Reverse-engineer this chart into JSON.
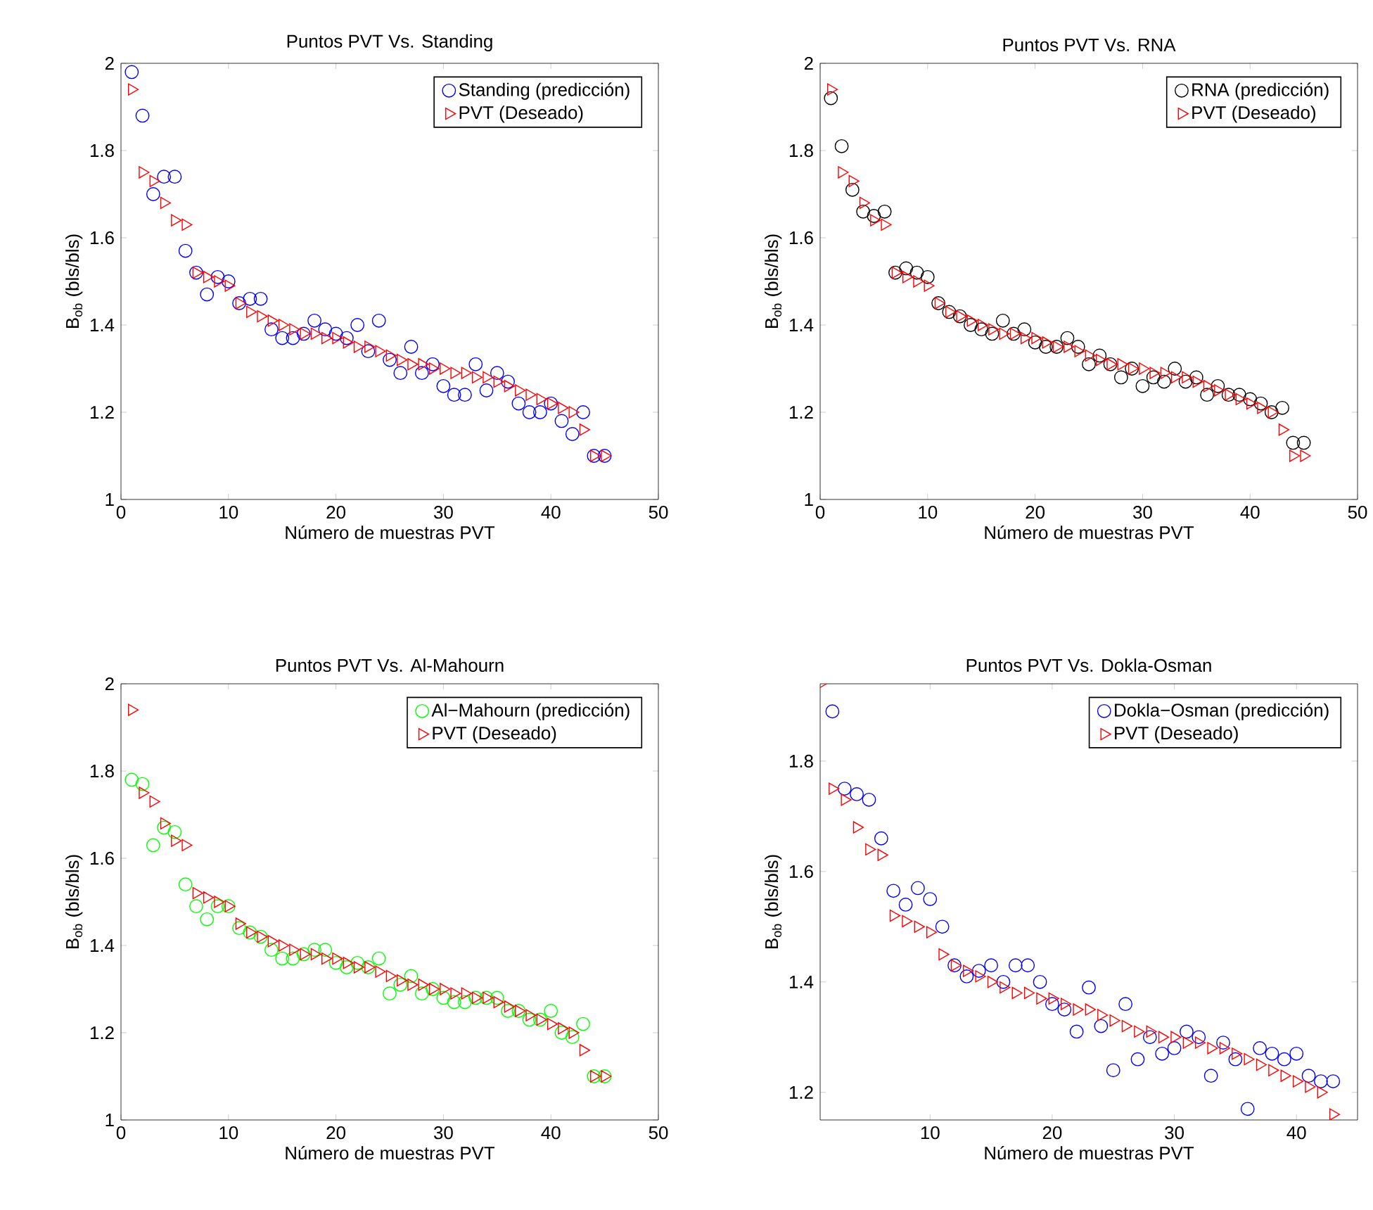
{
  "chart_data": [
    {
      "type": "scatter",
      "title": "Puntos PVT Vs. Standing",
      "xlabel": "Número de muestras PVT",
      "ylabel": "B$_{ob}$ (bls/bls)",
      "x": [
        1,
        2,
        3,
        4,
        5,
        6,
        7,
        8,
        9,
        10,
        11,
        12,
        13,
        14,
        15,
        16,
        17,
        18,
        19,
        20,
        21,
        22,
        23,
        24,
        25,
        26,
        27,
        28,
        29,
        30,
        31,
        32,
        33,
        34,
        35,
        36,
        37,
        38,
        39,
        40,
        41,
        42,
        43,
        44,
        45
      ],
      "legend": "top right",
      "xlim": [
        0,
        50
      ],
      "ylim": [
        1,
        2
      ],
      "xticks": [
        0,
        10,
        20,
        30,
        40,
        50
      ],
      "yticks": [
        1,
        1.2,
        1.4,
        1.6,
        1.8,
        2
      ],
      "series": [
        {
          "name": "Standing (predicción)",
          "color": "#0000ff",
          "marker": "circle",
          "values": [
            1.98,
            1.88,
            1.7,
            1.74,
            1.74,
            1.57,
            1.52,
            1.47,
            1.51,
            1.5,
            1.45,
            1.46,
            1.46,
            1.39,
            1.37,
            1.37,
            1.38,
            1.41,
            1.39,
            1.38,
            1.37,
            1.4,
            1.34,
            1.41,
            1.32,
            1.29,
            1.35,
            1.29,
            1.31,
            1.26,
            1.24,
            1.24,
            1.31,
            1.25,
            1.29,
            1.27,
            1.22,
            1.2,
            1.2,
            1.22,
            1.18,
            1.15,
            1.2,
            1.1,
            1.1
          ]
        },
        {
          "name": "PVT (Deseado)",
          "color": "#ff0000",
          "marker": "triangle",
          "values": [
            1.94,
            1.75,
            1.73,
            1.68,
            1.64,
            1.63,
            1.52,
            1.51,
            1.5,
            1.49,
            1.45,
            1.43,
            1.42,
            1.41,
            1.4,
            1.39,
            1.38,
            1.38,
            1.37,
            1.37,
            1.36,
            1.35,
            1.35,
            1.34,
            1.33,
            1.32,
            1.31,
            1.31,
            1.3,
            1.3,
            1.29,
            1.29,
            1.28,
            1.28,
            1.27,
            1.26,
            1.25,
            1.24,
            1.23,
            1.22,
            1.21,
            1.2,
            1.16,
            1.1,
            1.1
          ]
        }
      ]
    },
    {
      "type": "scatter",
      "title": "Puntos PVT Vs. RNA",
      "xlabel": "Número de muestras PVT",
      "ylabel": "B$_{ob}$ (bls/bls)",
      "x": [
        1,
        2,
        3,
        4,
        5,
        6,
        7,
        8,
        9,
        10,
        11,
        12,
        13,
        14,
        15,
        16,
        17,
        18,
        19,
        20,
        21,
        22,
        23,
        24,
        25,
        26,
        27,
        28,
        29,
        30,
        31,
        32,
        33,
        34,
        35,
        36,
        37,
        38,
        39,
        40,
        41,
        42,
        43,
        44,
        45
      ],
      "legend": "top right",
      "xlim": [
        0,
        50
      ],
      "ylim": [
        1,
        2
      ],
      "xticks": [
        0,
        10,
        20,
        30,
        40,
        50
      ],
      "yticks": [
        1,
        1.2,
        1.4,
        1.6,
        1.8,
        2
      ],
      "series": [
        {
          "name": "RNA (predicción)",
          "color": "#000000",
          "marker": "circle",
          "values": [
            1.92,
            1.81,
            1.71,
            1.66,
            1.65,
            1.66,
            1.52,
            1.53,
            1.52,
            1.51,
            1.45,
            1.43,
            1.42,
            1.4,
            1.39,
            1.38,
            1.41,
            1.38,
            1.39,
            1.36,
            1.35,
            1.35,
            1.37,
            1.35,
            1.31,
            1.33,
            1.31,
            1.28,
            1.3,
            1.26,
            1.28,
            1.27,
            1.3,
            1.27,
            1.28,
            1.24,
            1.26,
            1.24,
            1.24,
            1.23,
            1.22,
            1.2,
            1.21,
            1.13,
            1.13
          ]
        },
        {
          "name": "PVT (Deseado)",
          "color": "#ff0000",
          "marker": "triangle",
          "values": [
            1.94,
            1.75,
            1.73,
            1.68,
            1.64,
            1.63,
            1.52,
            1.51,
            1.5,
            1.49,
            1.45,
            1.43,
            1.42,
            1.41,
            1.4,
            1.39,
            1.38,
            1.38,
            1.37,
            1.37,
            1.36,
            1.35,
            1.35,
            1.34,
            1.33,
            1.32,
            1.31,
            1.31,
            1.3,
            1.3,
            1.29,
            1.29,
            1.28,
            1.28,
            1.27,
            1.26,
            1.25,
            1.24,
            1.23,
            1.22,
            1.21,
            1.2,
            1.16,
            1.1,
            1.1
          ]
        }
      ]
    },
    {
      "type": "scatter",
      "title": "Puntos PVT Vs. Al-Mahourn",
      "xlabel": "Número de muestras PVT",
      "ylabel": "B$_{ob}$ (bls/bls)",
      "x": [
        1,
        2,
        3,
        4,
        5,
        6,
        7,
        8,
        9,
        10,
        11,
        12,
        13,
        14,
        15,
        16,
        17,
        18,
        19,
        20,
        21,
        22,
        23,
        24,
        25,
        26,
        27,
        28,
        29,
        30,
        31,
        32,
        33,
        34,
        35,
        36,
        37,
        38,
        39,
        40,
        41,
        42,
        43,
        44,
        45
      ],
      "legend": "top right",
      "xlim": [
        0,
        50
      ],
      "ylim": [
        1,
        2
      ],
      "xticks": [
        0,
        10,
        20,
        30,
        40,
        50
      ],
      "yticks": [
        1,
        1.2,
        1.4,
        1.6,
        1.8,
        2
      ],
      "series": [
        {
          "name": "Al−Mahourn (predicción)",
          "color": "#00ff00",
          "marker": "circle",
          "values": [
            1.78,
            1.77,
            1.63,
            1.67,
            1.66,
            1.54,
            1.49,
            1.46,
            1.49,
            1.49,
            1.44,
            1.43,
            1.42,
            1.39,
            1.37,
            1.37,
            1.38,
            1.39,
            1.39,
            1.36,
            1.35,
            1.36,
            1.35,
            1.37,
            1.29,
            1.31,
            1.33,
            1.29,
            1.3,
            1.28,
            1.27,
            1.27,
            1.28,
            1.28,
            1.28,
            1.25,
            1.25,
            1.23,
            1.23,
            1.25,
            1.2,
            1.19,
            1.22,
            1.1,
            1.1
          ]
        },
        {
          "name": "PVT (Deseado)",
          "color": "#ff0000",
          "marker": "triangle",
          "values": [
            1.94,
            1.75,
            1.73,
            1.68,
            1.64,
            1.63,
            1.52,
            1.51,
            1.5,
            1.49,
            1.45,
            1.43,
            1.42,
            1.41,
            1.4,
            1.39,
            1.38,
            1.38,
            1.37,
            1.37,
            1.36,
            1.35,
            1.35,
            1.34,
            1.33,
            1.32,
            1.31,
            1.31,
            1.3,
            1.3,
            1.29,
            1.29,
            1.28,
            1.28,
            1.27,
            1.26,
            1.25,
            1.24,
            1.23,
            1.22,
            1.21,
            1.2,
            1.16,
            1.1,
            1.1
          ]
        }
      ]
    },
    {
      "type": "scatter",
      "title": "Puntos PVT Vs. Dokla-Osman",
      "xlabel": "Número de muestras PVT",
      "ylabel": "B$_{ob}$ (bls/bls)",
      "x": [
        1,
        2,
        3,
        4,
        5,
        6,
        7,
        8,
        9,
        10,
        11,
        12,
        13,
        14,
        15,
        16,
        17,
        18,
        19,
        20,
        21,
        22,
        23,
        24,
        25,
        26,
        27,
        28,
        29,
        30,
        31,
        32,
        33,
        34,
        35,
        36,
        37,
        38,
        39,
        40,
        41,
        42,
        43
      ],
      "legend": "top right",
      "xlim": [
        1,
        45
      ],
      "ylim": [
        1.15,
        1.94
      ],
      "xticks": [
        10,
        20,
        30,
        40
      ],
      "yticks": [
        1.2,
        1.4,
        1.6,
        1.8
      ],
      "series": [
        {
          "name": "Dokla−Osman (predicción)",
          "color": "#0000ff",
          "marker": "circle",
          "values": [
            null,
            1.89,
            1.75,
            1.74,
            1.73,
            1.66,
            1.565,
            1.54,
            1.57,
            1.55,
            1.5,
            1.43,
            1.41,
            1.42,
            1.43,
            1.4,
            1.43,
            1.43,
            1.4,
            1.36,
            1.35,
            1.31,
            1.39,
            1.32,
            1.24,
            1.36,
            1.26,
            1.3,
            1.27,
            1.28,
            1.31,
            1.3,
            1.23,
            1.29,
            1.26,
            1.17,
            1.28,
            1.27,
            1.26,
            1.27,
            1.23,
            1.22,
            1.22
          ]
        },
        {
          "name": "PVT (Deseado)",
          "color": "#ff0000",
          "marker": "triangle",
          "values": [
            1.94,
            1.75,
            1.73,
            1.68,
            1.64,
            1.63,
            1.52,
            1.51,
            1.5,
            1.49,
            1.45,
            1.43,
            1.42,
            1.41,
            1.4,
            1.39,
            1.38,
            1.38,
            1.37,
            1.37,
            1.36,
            1.35,
            1.35,
            1.34,
            1.33,
            1.32,
            1.31,
            1.31,
            1.3,
            1.3,
            1.29,
            1.29,
            1.28,
            1.28,
            1.27,
            1.26,
            1.25,
            1.24,
            1.23,
            1.22,
            1.21,
            1.2,
            1.16
          ]
        }
      ]
    }
  ]
}
